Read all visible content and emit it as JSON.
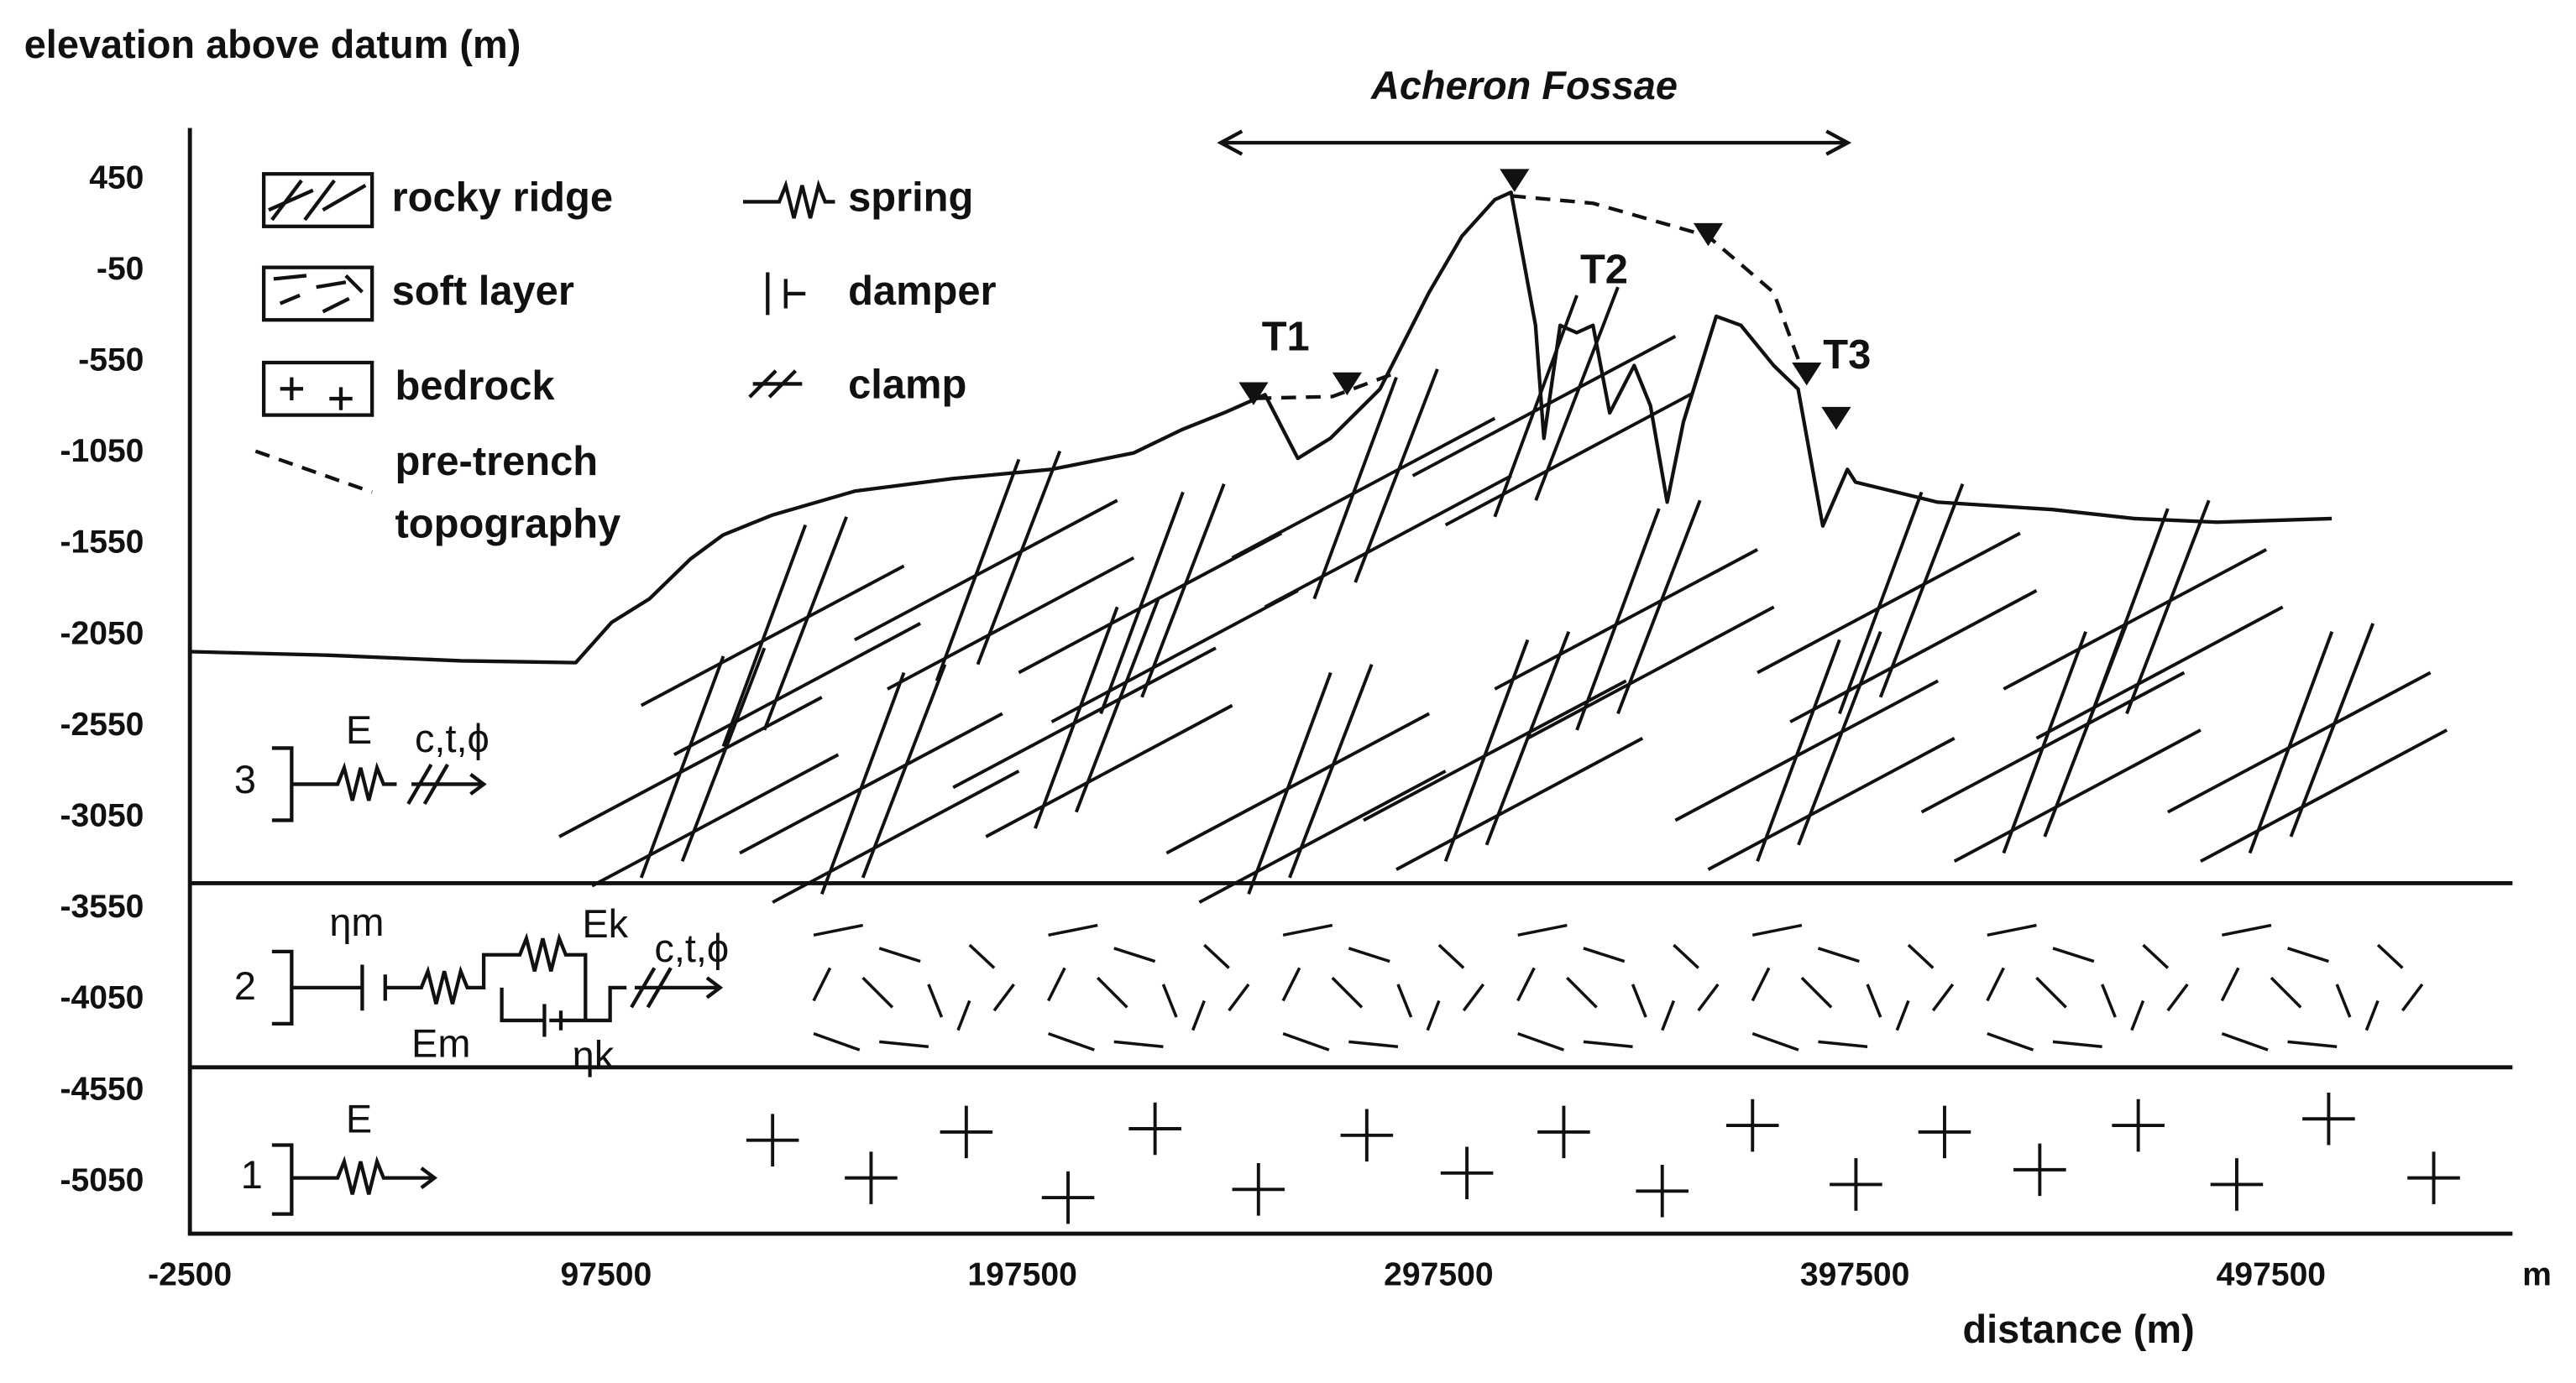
{
  "chart_data": {
    "type": "line",
    "y_label": "elevation above datum (m)",
    "x_label": "distance (m)",
    "x_unit": "m",
    "region_label": "Acheron Fossae",
    "trenches": [
      "T1",
      "T2",
      "T3"
    ],
    "xlim": [
      -2500,
      555500
    ],
    "xticks": [
      -2500,
      97500,
      197500,
      297500,
      397500,
      497500
    ],
    "ylim": [
      -5333,
      733
    ],
    "yticks": [
      450,
      -50,
      -550,
      -1050,
      -1550,
      -2050,
      -2550,
      -3050,
      -3550,
      -4050,
      -4550,
      -5050
    ],
    "layer_boundaries": [
      -3410,
      -4420
    ],
    "layers": [
      {
        "label": "3",
        "symbols": [
          "E",
          "c,t,ϕ"
        ]
      },
      {
        "label": "2",
        "symbols": [
          "ηm",
          "Em",
          "Ek",
          "c,t,ϕ",
          "ηk"
        ]
      },
      {
        "label": "1",
        "symbols": [
          "E"
        ]
      }
    ],
    "legend": [
      {
        "label": "rocky ridge"
      },
      {
        "label": "soft layer"
      },
      {
        "label": "bedrock"
      },
      {
        "label": [
          "pre-trench",
          "topography"
        ]
      },
      {
        "label": "spring"
      },
      {
        "label": "damper"
      },
      {
        "label": "clamp"
      }
    ],
    "series": [
      {
        "color": "#111111",
        "style": "solid",
        "x": [
          -2500,
          31000,
          62600,
          90200,
          98800,
          107900,
          117800,
          125600,
          137500,
          157200,
          180800,
          204500,
          224200,
          236000,
          245900,
          255800,
          263700,
          271500,
          283400,
          295200,
          303100,
          311000,
          314900,
          320800,
          322800,
          326700,
          330700,
          334600,
          338600,
          344500,
          348400,
          352400,
          356300,
          364200,
          370100,
          378000,
          383900,
          389800,
          395700,
          397700,
          417400,
          445000,
          464700,
          484500,
          512100
        ],
        "values": [
          -2140,
          -2160,
          -2190,
          -2200,
          -1980,
          -1850,
          -1630,
          -1500,
          -1390,
          -1260,
          -1190,
          -1140,
          -1050,
          -920,
          -830,
          -730,
          -1080,
          -970,
          -700,
          -170,
          140,
          340,
          380,
          -350,
          -970,
          -350,
          -390,
          -350,
          -830,
          -570,
          -790,
          -1320,
          -880,
          -300,
          -350,
          -570,
          -700,
          -1450,
          -1140,
          -1210,
          -1320,
          -1360,
          -1410,
          -1430,
          -1410
        ]
      },
      {
        "color": "#111111",
        "style": "dashed",
        "x": [
          253800,
          272000,
          287300
        ],
        "values": [
          -750,
          -740,
          -610
        ]
      },
      {
        "color": "#111111",
        "style": "dashed",
        "x": [
          314900,
          334600,
          362200,
          378000,
          385100
        ],
        "values": [
          360,
          320,
          140,
          -170,
          -610
        ]
      }
    ]
  }
}
